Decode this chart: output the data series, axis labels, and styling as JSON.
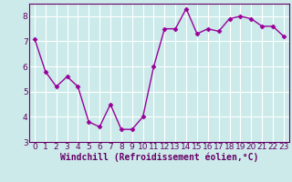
{
  "x": [
    0,
    1,
    2,
    3,
    4,
    5,
    6,
    7,
    8,
    9,
    10,
    11,
    12,
    13,
    14,
    15,
    16,
    17,
    18,
    19,
    20,
    21,
    22,
    23
  ],
  "y": [
    7.1,
    5.8,
    5.2,
    5.6,
    5.2,
    3.8,
    3.6,
    4.5,
    3.5,
    3.5,
    4.0,
    6.0,
    7.5,
    7.5,
    8.3,
    7.3,
    7.5,
    7.4,
    7.9,
    8.0,
    7.9,
    7.6,
    7.6,
    7.2
  ],
  "line_color": "#990099",
  "marker": "D",
  "marker_size": 2.5,
  "bg_color": "#cceaea",
  "grid_color": "#ffffff",
  "xlabel": "Windchill (Refroidissement éolien,°C)",
  "ylim": [
    3,
    8.5
  ],
  "xlim": [
    -0.5,
    23.5
  ],
  "yticks": [
    3,
    4,
    5,
    6,
    7,
    8
  ],
  "xticks": [
    0,
    1,
    2,
    3,
    4,
    5,
    6,
    7,
    8,
    9,
    10,
    11,
    12,
    13,
    14,
    15,
    16,
    17,
    18,
    19,
    20,
    21,
    22,
    23
  ],
  "tick_label_fontsize": 6.5,
  "xlabel_fontsize": 7.0,
  "linewidth": 1.0
}
